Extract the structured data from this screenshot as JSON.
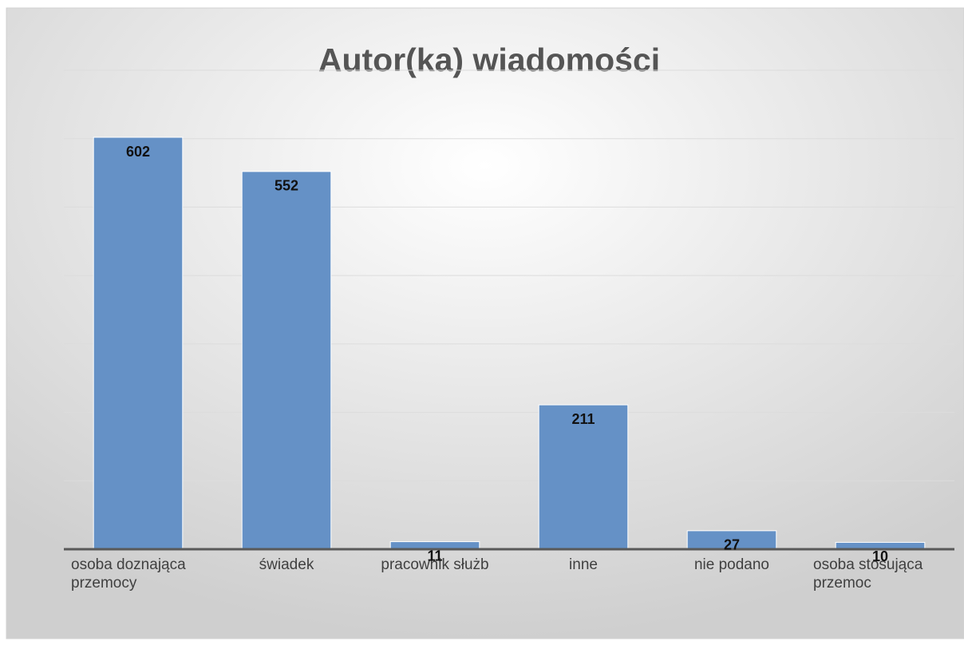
{
  "chart_data": {
    "type": "bar",
    "title": "Autor(ka) wiadomości",
    "categories": [
      "osoba doznająca przemocy",
      "świadek",
      "pracownik służb",
      "inne",
      "nie podano",
      "osoba stosująca przemoc"
    ],
    "values": [
      602,
      552,
      11,
      211,
      27,
      10
    ],
    "color": "#6591c6",
    "ylim": [
      0,
      700
    ],
    "yticks": [
      0,
      100,
      200,
      300,
      400,
      500,
      600,
      700
    ],
    "grid": true
  }
}
